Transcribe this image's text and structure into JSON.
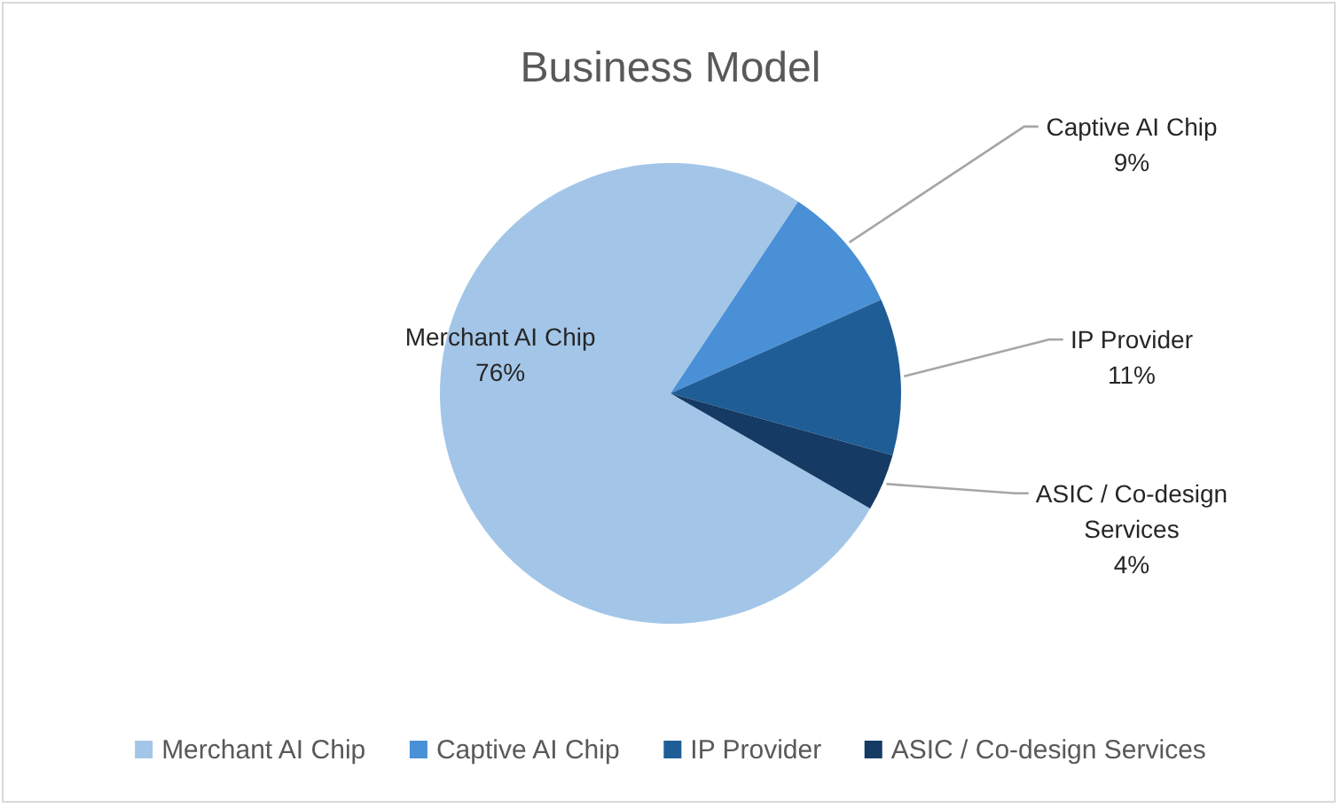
{
  "chart_data": {
    "type": "pie",
    "title": "Business Model",
    "categories": [
      "Merchant AI Chip",
      "Captive AI Chip",
      "IP Provider",
      "ASIC / Co-design Services"
    ],
    "values": [
      76,
      9,
      11,
      4
    ],
    "colors": [
      "#a3c6e8",
      "#4a90d6",
      "#1f5d96",
      "#153a63"
    ],
    "value_labels": [
      "76%",
      "9%",
      "11%",
      "4%"
    ],
    "legend": "bottom"
  }
}
